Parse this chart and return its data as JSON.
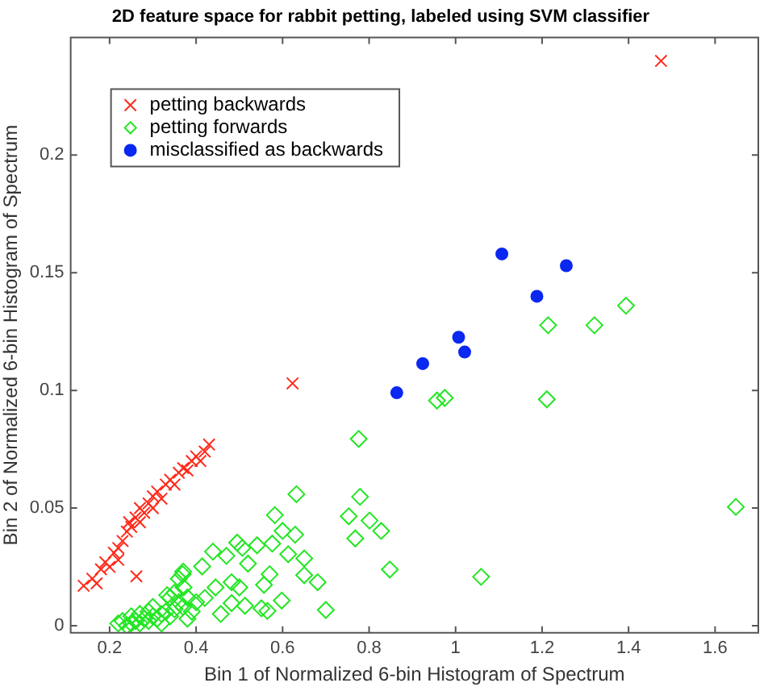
{
  "chart_data": {
    "type": "scatter",
    "title": "2D feature space for rabbit petting, labeled using SVM classifier",
    "xlabel": "Bin 1 of Normalized 6-bin Histogram of Spectrum",
    "ylabel": "Bin 2 of Normalized 6-bin Histogram of Spectrum",
    "xlim": [
      0.11,
      1.7
    ],
    "ylim": [
      -0.003,
      0.25
    ],
    "xticks": [
      0.2,
      0.4,
      0.6,
      0.8,
      1,
      1.2,
      1.4,
      1.6
    ],
    "yticks": [
      0,
      0.05,
      0.1,
      0.15,
      0.2
    ],
    "grid": false,
    "legend": "top left",
    "series": [
      {
        "name": "petting backwards",
        "color": "#ff2a1a",
        "marker": "cross",
        "x": [
          1.475,
          0.623,
          0.262,
          0.14,
          0.16,
          0.17,
          0.18,
          0.19,
          0.2,
          0.21,
          0.22,
          0.22,
          0.23,
          0.24,
          0.245,
          0.25,
          0.26,
          0.27,
          0.27,
          0.28,
          0.29,
          0.3,
          0.3,
          0.31,
          0.32,
          0.33,
          0.34,
          0.35,
          0.36,
          0.37,
          0.38,
          0.39,
          0.4,
          0.41,
          0.42,
          0.43
        ],
        "values": [
          0.24,
          0.103,
          0.021,
          0.017,
          0.02,
          0.018,
          0.024,
          0.027,
          0.025,
          0.031,
          0.033,
          0.028,
          0.036,
          0.04,
          0.044,
          0.042,
          0.046,
          0.044,
          0.05,
          0.048,
          0.052,
          0.05,
          0.055,
          0.057,
          0.054,
          0.06,
          0.062,
          0.06,
          0.065,
          0.067,
          0.066,
          0.07,
          0.072,
          0.07,
          0.074,
          0.077
        ]
      },
      {
        "name": "petting forwards",
        "color": "#22e622",
        "marker": "diamond",
        "x": [
          1.394,
          1.214,
          1.321,
          0.957,
          0.975,
          1.211,
          0.776,
          0.779,
          0.753,
          0.801,
          0.768,
          0.828,
          0.848,
          1.059,
          0.7,
          1.648,
          0.681,
          0.632,
          0.582,
          0.6,
          0.629,
          0.613,
          0.65,
          0.65,
          0.598,
          0.439,
          0.495,
          0.541,
          0.576,
          0.47,
          0.507,
          0.52,
          0.557,
          0.57,
          0.482,
          0.445,
          0.414,
          0.371,
          0.369,
          0.333,
          0.457,
          0.513,
          0.551,
          0.482,
          0.42,
          0.5,
          0.565,
          0.22,
          0.23,
          0.24,
          0.25,
          0.26,
          0.27,
          0.28,
          0.29,
          0.3,
          0.31,
          0.32,
          0.33,
          0.34,
          0.35,
          0.36,
          0.37,
          0.38,
          0.39,
          0.36,
          0.37,
          0.35,
          0.4,
          0.3,
          0.27,
          0.34,
          0.38,
          0.25,
          0.32,
          0.29
        ],
        "values": [
          0.136,
          0.1277,
          0.1277,
          0.0957,
          0.0968,
          0.0962,
          0.0794,
          0.0548,
          0.0465,
          0.0447,
          0.0371,
          0.0403,
          0.0239,
          0.0208,
          0.0067,
          0.0505,
          0.0185,
          0.0559,
          0.047,
          0.0403,
          0.0387,
          0.0304,
          0.0286,
          0.0215,
          0.0107,
          0.0315,
          0.0353,
          0.0342,
          0.0349,
          0.0297,
          0.0331,
          0.0264,
          0.0174,
          0.0219,
          0.0185,
          0.0163,
          0.0252,
          0.0163,
          0.0219,
          0.013,
          0.005,
          0.0085,
          0.0074,
          0.0096,
          0.0118,
          0.0163,
          0.0063,
          0.001,
          0.002,
          0,
          0.001,
          0.002,
          0.001,
          0.003,
          0.002,
          0.004,
          0.003,
          0.005,
          0.006,
          0.004,
          0.007,
          0.01,
          0.008,
          0.012,
          0.006,
          0.02,
          0.023,
          0.014,
          0.01,
          0.008,
          0.005,
          0.012,
          0.003,
          0.004,
          0.001,
          0.006
        ]
      },
      {
        "name": "misclassified as backwards",
        "color": "#0a28f0",
        "marker": "circle",
        "x": [
          1.107,
          1.256,
          1.188,
          1.007,
          1.021,
          0.924,
          0.864
        ],
        "values": [
          0.158,
          0.153,
          0.14,
          0.1226,
          0.1163,
          0.1114,
          0.099
        ]
      }
    ]
  }
}
